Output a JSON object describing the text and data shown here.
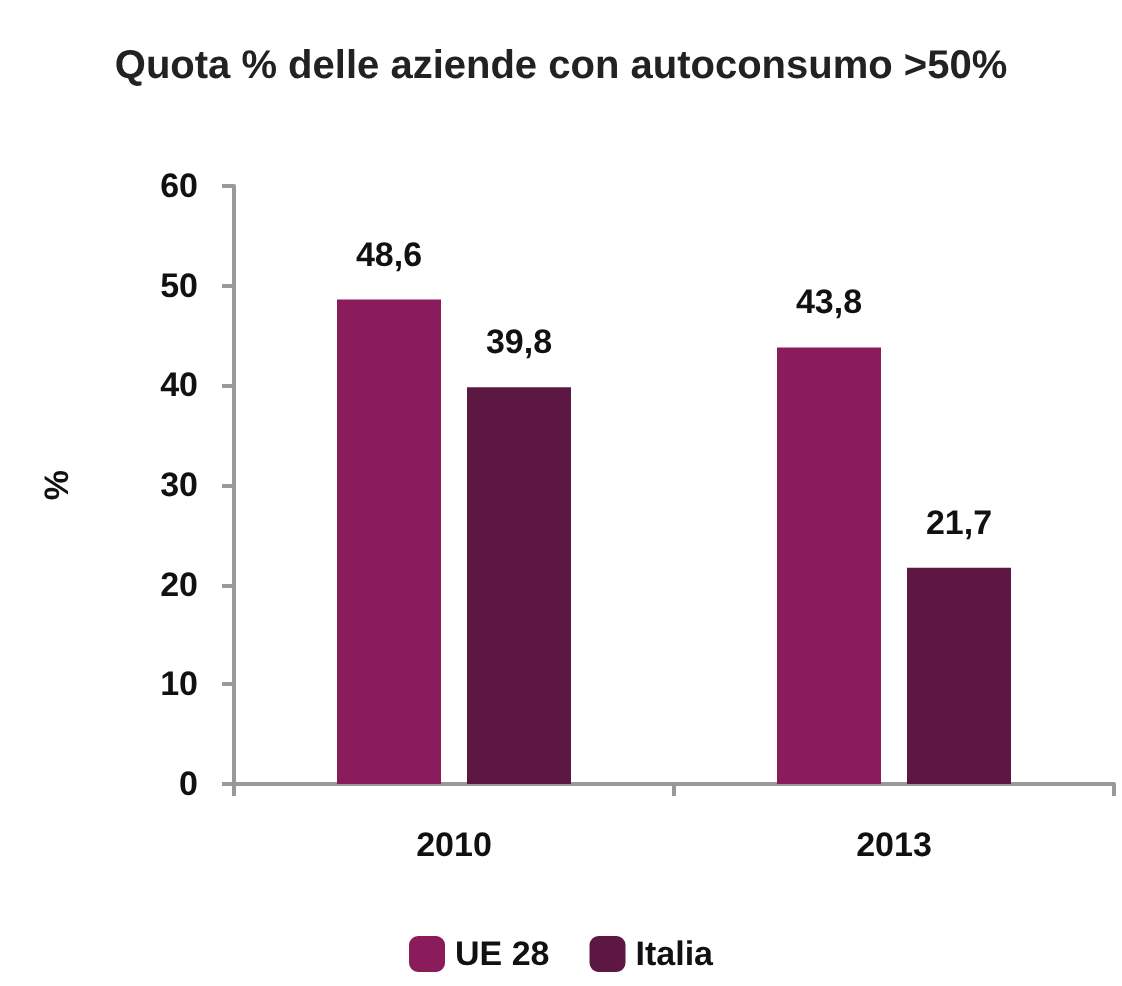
{
  "chart_data": {
    "type": "bar",
    "title": "Quota % delle aziende con autoconsumo >50%",
    "ylabel": "%",
    "categories": [
      "2010",
      "2013"
    ],
    "series": [
      {
        "name": "UE 28",
        "color": "#8b1c5c",
        "values": [
          48.6,
          43.8
        ],
        "value_labels": [
          "48,6",
          "43,8"
        ]
      },
      {
        "name": "Italia",
        "color": "#5c1842",
        "values": [
          39.8,
          21.7
        ],
        "value_labels": [
          "39,8",
          "21,7"
        ]
      }
    ],
    "ylim": [
      0,
      60
    ],
    "yticks": [
      0,
      10,
      20,
      30,
      40,
      50,
      60
    ],
    "grid": false,
    "legend": "bottom"
  }
}
